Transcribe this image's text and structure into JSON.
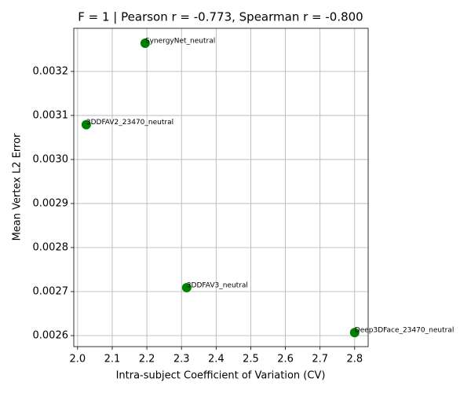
{
  "chart_data": {
    "type": "scatter",
    "title": "F = 1 | Pearson r = -0.773, Spearman r = -0.800",
    "xlabel": "Intra-subject Coefficient of Variation (CV)",
    "ylabel": "Mean Vertex L2 Error",
    "color": "#008000",
    "grid": true,
    "labels": [
      "SynergyNet_neutral",
      "3DDFAV2_23470_neutral",
      "3DDFAV3_neutral",
      "Deep3DFace_23470_neutral"
    ],
    "x": [
      2.195,
      2.025,
      2.315,
      2.8
    ],
    "y": [
      0.003264,
      0.003079,
      0.002709,
      0.002607
    ],
    "xlim": [
      1.989,
      2.839
    ],
    "ylim": [
      0.002575,
      0.003298
    ],
    "xticks": [
      {
        "value": 2.0,
        "label": "2.0"
      },
      2.1,
      2.2,
      2.3,
      2.4,
      2.5,
      2.6,
      2.7,
      2.8
    ],
    "yticks": [
      0.0026,
      0.0027,
      0.0028,
      0.0029,
      {
        "value": 0.003,
        "label": "0.0030"
      },
      0.0031,
      0.0032
    ]
  }
}
